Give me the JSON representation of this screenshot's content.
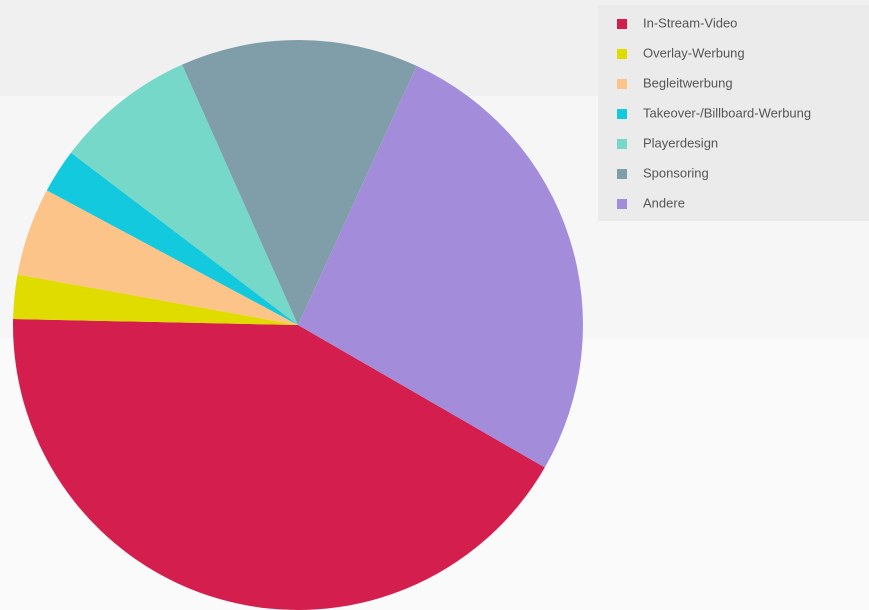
{
  "chart_data": {
    "type": "pie",
    "categories": [
      "In-Stream-Video",
      "Overlay-Werbung",
      "Begleitwerbung",
      "Takeover-/Billboard-Werbung",
      "Playerdesign",
      "Sponsoring",
      "Andere"
    ],
    "values": [
      42,
      2.5,
      5,
      2.5,
      8,
      13.5,
      26.5
    ],
    "colors": [
      "#d41f4e",
      "#e0dc00",
      "#fdc48a",
      "#12c9de",
      "#76d8c8",
      "#7f9ea9",
      "#a38ddb"
    ],
    "legend": "top-right"
  }
}
